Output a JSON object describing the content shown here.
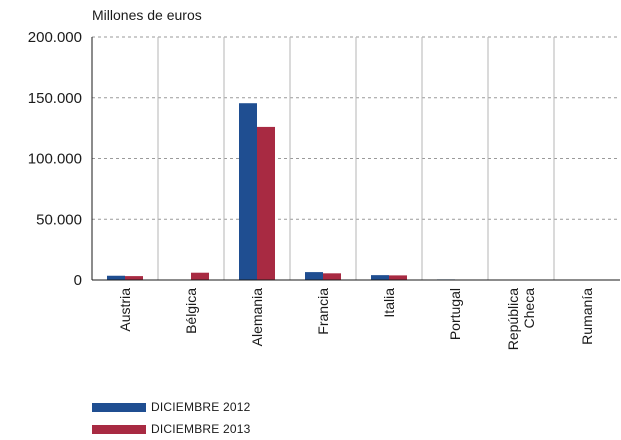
{
  "chart_data": {
    "type": "bar",
    "ylabel": "Millones de euros",
    "categories": [
      "Austria",
      "Bélgica",
      "Alemania",
      "Francia",
      "Italia",
      "Portugal",
      "República Checa",
      "Rumanía"
    ],
    "category_lines": [
      [
        "Austria"
      ],
      [
        "Bélgica"
      ],
      [
        "Alemania"
      ],
      [
        "Francia"
      ],
      [
        "Italia"
      ],
      [
        "Portugal"
      ],
      [
        "República",
        "Checa"
      ],
      [
        "Rumanía"
      ]
    ],
    "series": [
      {
        "name": "DICIEMBRE 2012",
        "color": "#1f4e91",
        "values": [
          3500,
          300,
          145500,
          6500,
          4000,
          500,
          200,
          200
        ]
      },
      {
        "name": "DICIEMBRE 2013",
        "color": "#a82a42",
        "values": [
          3200,
          6000,
          126000,
          5500,
          3800,
          400,
          300,
          200
        ]
      }
    ],
    "ylim": [
      0,
      200000
    ],
    "yticks": [
      0,
      50000,
      100000,
      150000,
      200000
    ],
    "ytick_labels": [
      "0",
      "50.000",
      "100.000",
      "150.000",
      "200.000"
    ],
    "grid": true,
    "legend_position": "bottom-left"
  }
}
